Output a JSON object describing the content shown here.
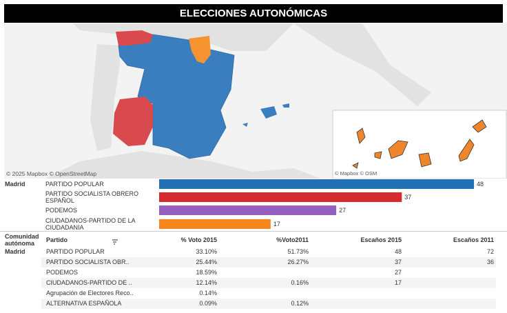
{
  "header": {
    "title": "ELECCIONES AUTONÓMICAS"
  },
  "map": {
    "attribution": "© 2025 Mapbox  © OpenStreetMap",
    "inset_attribution": "© Mapbox  © OSM"
  },
  "chart_data": {
    "type": "bar",
    "orientation": "horizontal",
    "group": "Madrid",
    "categories": [
      "PARTIDO POPULAR",
      "PARTIDO SOCIALISTA OBRERO ESPAÑOL",
      "PODEMOS",
      "CIUDADANOS-PARTIDO DE LA CIUDADANIA"
    ],
    "values": [
      48,
      37,
      27,
      17
    ],
    "colors": [
      "#2470b4",
      "#d62a2f",
      "#9461c0",
      "#f7861f"
    ]
  },
  "table": {
    "columns": [
      "Comunidad autónoma",
      "Partido",
      "% Voto 2015",
      "%Voto2011",
      "Escaños 2015",
      "Escaños 2011"
    ],
    "rows": [
      [
        "Madrid",
        "PARTIDO POPULAR",
        "33.10%",
        "51.73%",
        "48",
        "72"
      ],
      [
        null,
        "PARTIDO SOCIALISTA OBR..",
        "25.44%",
        "26.27%",
        "37",
        "36"
      ],
      [
        null,
        "PODEMOS",
        "18.59%",
        null,
        "27",
        null
      ],
      [
        null,
        "CIUDADANOS-PARTIDO DE ..",
        "12.14%",
        "0.16%",
        "17",
        null
      ],
      [
        null,
        "Agrupación de Electores Reco..",
        "0.14%",
        null,
        null,
        null
      ],
      [
        null,
        "ALTERNATIVA ESPAÑOLA",
        "0.09%",
        "0.12%",
        null,
        null
      ]
    ]
  }
}
